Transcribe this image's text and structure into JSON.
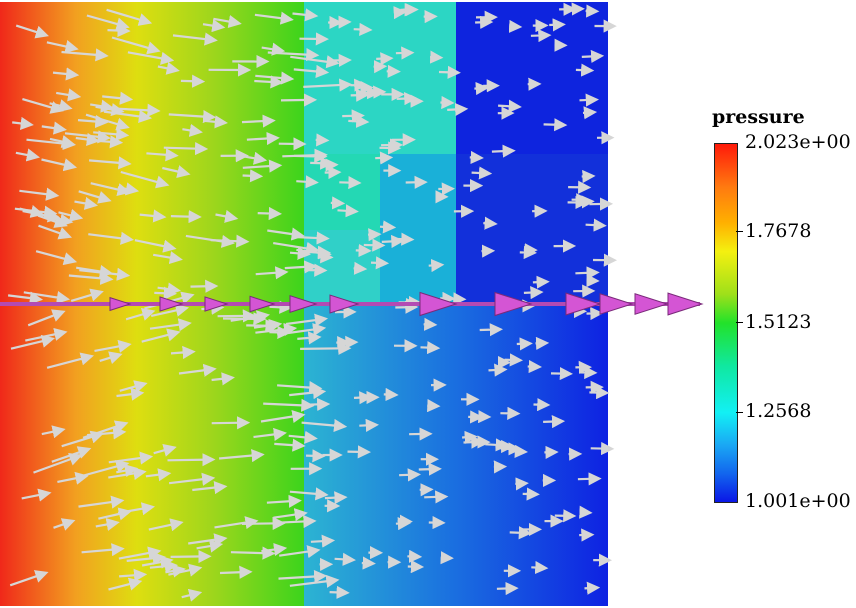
{
  "legend": {
    "title": "pressure",
    "max_label": "2.023e+00",
    "min_label": "1.001e+00",
    "ticks": [
      "1.7678",
      "1.5123",
      "1.2568"
    ]
  },
  "colors": {
    "high": "#ff1a0a",
    "mid": "#22e22a",
    "low": "#0a16e6",
    "glyph": "#d4d4d4",
    "streamline": "#cc44cc"
  },
  "icons": [
    "velocity-arrow-glyph",
    "streamline-arrow-glyph"
  ]
}
